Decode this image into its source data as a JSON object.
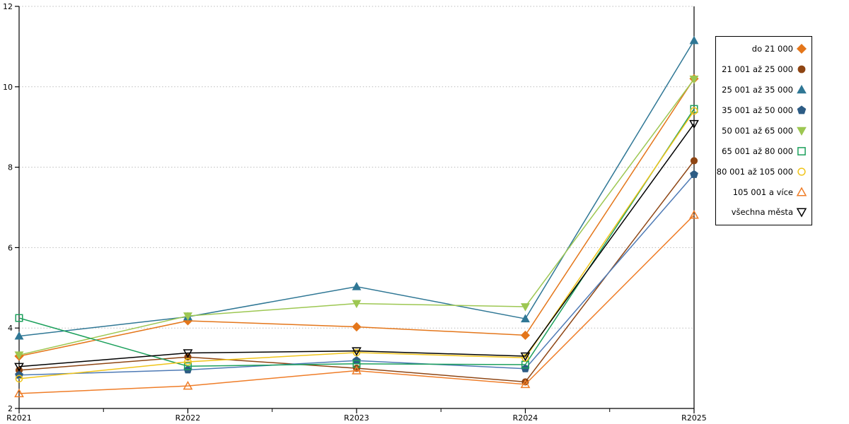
{
  "chart_data": {
    "type": "line",
    "title": "",
    "xlabel": "",
    "ylabel": "",
    "categories": [
      "R2021",
      "R2022",
      "R2023",
      "R2024",
      "R2025"
    ],
    "ylim": [
      2,
      12
    ],
    "yticks": [
      2,
      4,
      6,
      8,
      10,
      12
    ],
    "grid": "horizontal dotted at 4,6,8,10,12",
    "x_minor_ticks": "midpoints between year ticks",
    "legend_position": "right outside, vertical box",
    "axis_color": "#000000",
    "grid_color": "#bbbbbb",
    "series": [
      {
        "name": "do 21 000",
        "marker": "diamond",
        "fill": "solid",
        "color": "#e4761a",
        "values": [
          3.3,
          4.18,
          4.03,
          3.82,
          10.2
        ]
      },
      {
        "name": "21 001 až 25 000",
        "marker": "circle",
        "fill": "solid",
        "color": "#8e4513",
        "values": [
          2.95,
          3.28,
          3.0,
          2.66,
          8.16
        ]
      },
      {
        "name": "25 001 až 35 000",
        "marker": "triangle-up",
        "fill": "solid",
        "color": "#2f7795",
        "values": [
          3.8,
          4.28,
          5.03,
          4.23,
          11.15
        ]
      },
      {
        "name": "35 001 až 50 000",
        "marker": "pentagon",
        "fill": "solid",
        "color": "#2d5c85",
        "line_color": "#4e7ab5",
        "values": [
          2.83,
          2.96,
          3.19,
          2.99,
          7.82
        ]
      },
      {
        "name": "50 001 až 65 000",
        "marker": "triangle-down",
        "fill": "solid",
        "color": "#9dc752",
        "values": [
          3.33,
          4.3,
          4.61,
          4.53,
          10.19
        ]
      },
      {
        "name": "65 001 až 80 000",
        "marker": "square",
        "fill": "none",
        "color": "#1ca05c",
        "values": [
          4.25,
          3.05,
          3.11,
          3.09,
          9.45
        ]
      },
      {
        "name": "80 001 až 105 000",
        "marker": "circle",
        "fill": "none",
        "color": "#f0c419",
        "values": [
          2.74,
          3.16,
          3.39,
          3.26,
          9.4
        ]
      },
      {
        "name": "105 001 a více",
        "marker": "triangle-up",
        "fill": "none",
        "color": "#ef7d28",
        "values": [
          2.37,
          2.56,
          2.94,
          2.6,
          6.81
        ]
      },
      {
        "name": "všechna města",
        "marker": "triangle-down",
        "fill": "none",
        "color": "#000000",
        "values": [
          3.04,
          3.38,
          3.43,
          3.3,
          9.08
        ]
      }
    ]
  }
}
